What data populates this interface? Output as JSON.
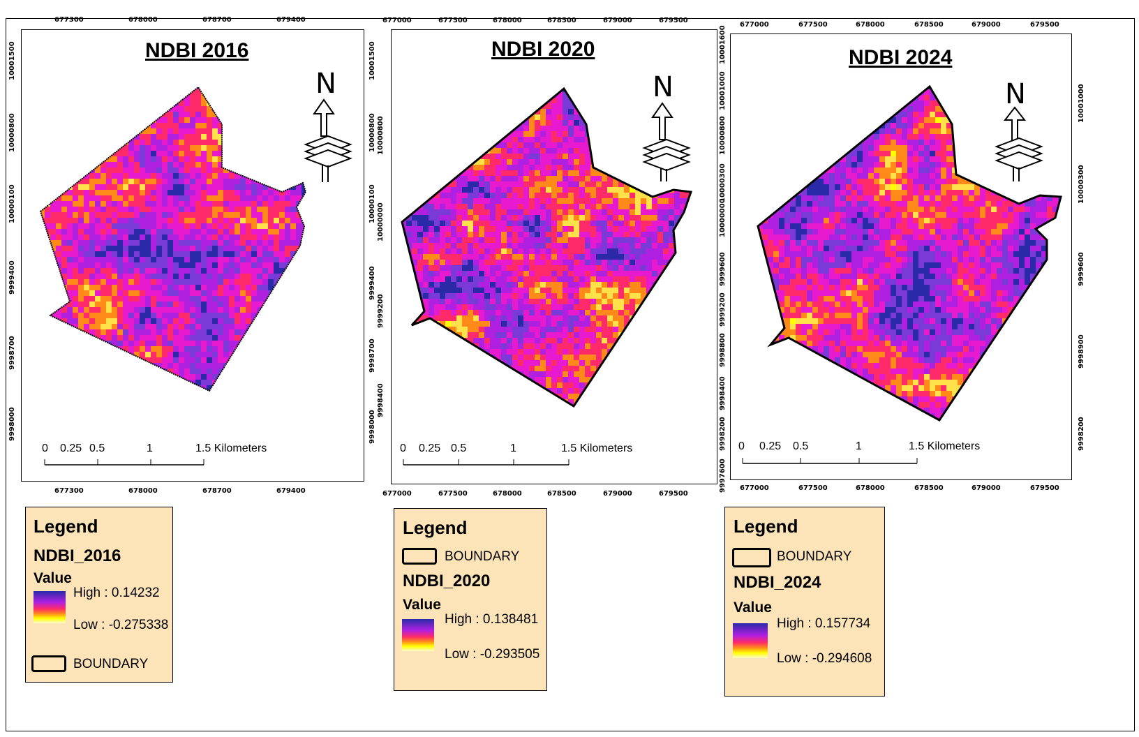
{
  "panels": [
    {
      "title": "NDBI 2016",
      "x_ticks_top": [
        "677300",
        "678000",
        "678700",
        "679400"
      ],
      "x_ticks_bottom": [
        "677300",
        "678000",
        "678700",
        "679400"
      ],
      "y_ticks_left": [
        "10001500",
        "10000800",
        "10000100",
        "9999400",
        "9998700",
        "9998000"
      ],
      "scale": {
        "labels": [
          "0",
          "0.25",
          "0.5",
          "1",
          "1.5 Kilometers"
        ]
      },
      "north_label": "N",
      "legend": {
        "title": "Legend",
        "layer": "NDBI_2016",
        "value_label": "Value",
        "high": "High : 0.14232",
        "low": "Low : -0.275338",
        "boundary": "BOUNDARY"
      }
    },
    {
      "title": "NDBI 2020",
      "x_ticks_top": [
        "677000",
        "677500",
        "678000",
        "678500",
        "679000",
        "679500"
      ],
      "x_ticks_bottom": [
        "677000",
        "677500",
        "678000",
        "678500",
        "679000",
        "679500"
      ],
      "y_ticks_left": [
        "10001500",
        "10000800",
        "10000100",
        "9999400",
        "9998700",
        "9998000"
      ],
      "y_ticks_right": [
        "10000800",
        "10000000",
        "9999200",
        "9998400"
      ],
      "scale": {
        "labels": [
          "0",
          "0.25",
          "0.5",
          "1",
          "1.5 Kilometers"
        ]
      },
      "north_label": "N",
      "legend": {
        "title": "Legend",
        "boundary": "BOUNDARY",
        "layer": "NDBI_2020",
        "value_label": "Value",
        "high": "High : 0.138481",
        "low": "Low : -0.293505"
      }
    },
    {
      "title": "NDBI 2024",
      "x_ticks_top": [
        "677000",
        "677500",
        "678000",
        "678500",
        "679000",
        "679500"
      ],
      "x_ticks_bottom": [
        "677000",
        "677500",
        "678000",
        "678500",
        "679000",
        "679500"
      ],
      "y_ticks_left": [
        "10001600",
        "10001000",
        "10000800",
        "10000300",
        "10000000",
        "9999600",
        "9999200",
        "9998800",
        "9998400",
        "9998200",
        "9997600"
      ],
      "y_ticks_right": [
        "10001000",
        "10000300",
        "9999600",
        "9998900",
        "9998200"
      ],
      "scale": {
        "labels": [
          "0",
          "0.25",
          "0.5",
          "1",
          "1.5 Kilometers"
        ]
      },
      "north_label": "N",
      "legend": {
        "title": "Legend",
        "boundary": "BOUNDARY",
        "layer": "NDBI_2024",
        "value_label": "Value",
        "high": "High : 0.157734",
        "low": "Low : -0.294608"
      }
    }
  ],
  "colors": {
    "ramp_high": "#2a2aa8",
    "ramp_mid1": "#b020e0",
    "ramp_mid2": "#ff2a6a",
    "ramp_mid3": "#ff8a1a",
    "ramp_low": "#ffff00",
    "legend_bg": "#fde4b8"
  }
}
